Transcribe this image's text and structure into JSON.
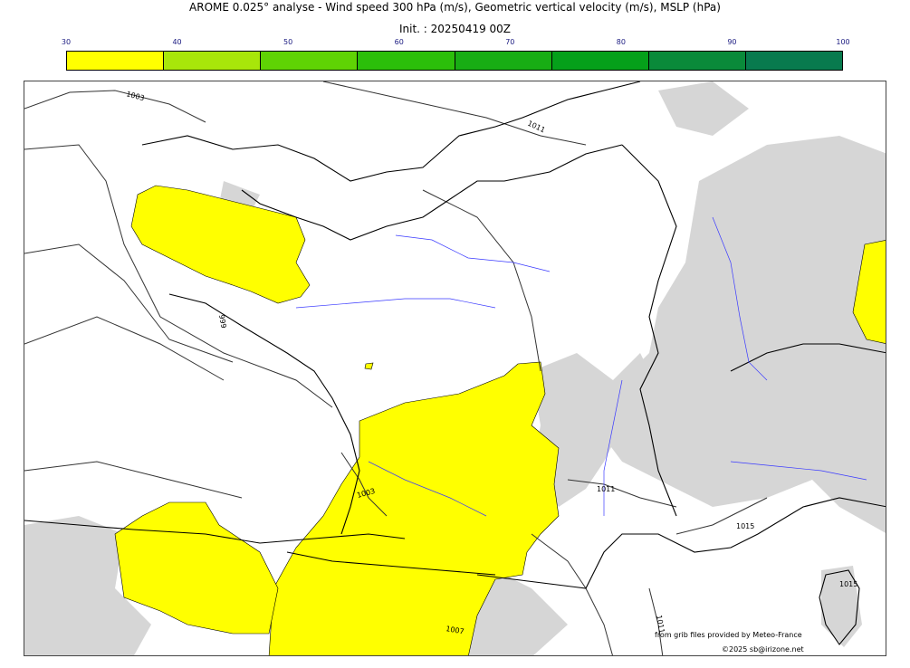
{
  "header": {
    "title": "AROME 0.025° analyse - Wind speed 300 hPa (m/s), Geometric vertical velocity (m/s), MSLP (hPa)",
    "init": "Init. : 20250419 00Z"
  },
  "colorbar": {
    "ticks": [
      "30",
      "40",
      "50",
      "60",
      "70",
      "80",
      "90",
      "100"
    ],
    "colors": [
      "#ffff00",
      "#a8e60a",
      "#5fd304",
      "#2bbf0a",
      "#18ad14",
      "#05a01a",
      "#0a8a3a",
      "#087a4e"
    ]
  },
  "map": {
    "isobar_labels": [
      "1003",
      "1011",
      "999",
      "1003",
      "1011",
      "1015",
      "1015",
      "1007",
      "1011"
    ],
    "colors": {
      "wind_fill": "#ffff00",
      "vertical_velocity": "#d4d4d4",
      "coast": "#000000",
      "rivers": "#3a3aff",
      "isobars": "#333333"
    }
  },
  "footer": {
    "source": "from grib files provided by Meteo-France",
    "copyright": "©2025 sb@irizone.net"
  }
}
